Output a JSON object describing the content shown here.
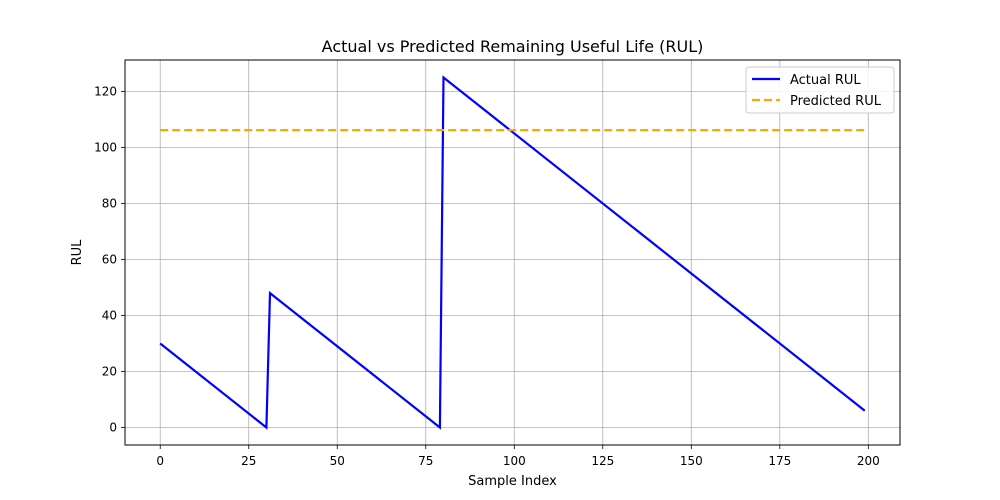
{
  "chart_data": {
    "type": "line",
    "title": "Actual vs Predicted Remaining Useful Life (RUL)",
    "xlabel": "Sample Index",
    "ylabel": "RUL",
    "xlim": [
      -9.95,
      208.95
    ],
    "ylim": [
      -6.25,
      131.25
    ],
    "x_ticks": [
      0,
      25,
      50,
      75,
      100,
      125,
      150,
      175,
      200
    ],
    "y_ticks": [
      0,
      20,
      40,
      60,
      80,
      100,
      120
    ],
    "grid": true,
    "legend_position": "top-right",
    "series": [
      {
        "name": "Actual RUL",
        "color": "#0000ff",
        "style": "solid",
        "points": [
          [
            0,
            30
          ],
          [
            30,
            0
          ],
          [
            31,
            48
          ],
          [
            79,
            0
          ],
          [
            80,
            125
          ],
          [
            199,
            6
          ]
        ]
      },
      {
        "name": "Predicted RUL",
        "color": "#ffa500",
        "style": "dashed",
        "points": [
          [
            0,
            106.2
          ],
          [
            199,
            106.2
          ]
        ]
      }
    ]
  }
}
